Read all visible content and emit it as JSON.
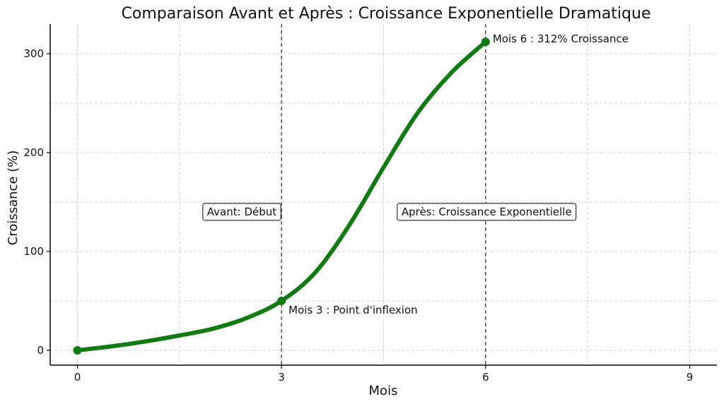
{
  "chart_data": {
    "type": "line",
    "title": "Comparaison Avant et Après : Croissance Exponentielle Dramatique",
    "xlabel": "Mois",
    "ylabel": "Croissance (%)",
    "xlim": [
      -0.4,
      9.4
    ],
    "ylim": [
      -15,
      330
    ],
    "x_ticks": [
      0,
      3,
      6,
      9
    ],
    "y_ticks": [
      0,
      100,
      200,
      300
    ],
    "x_minor_grid": [
      1.5,
      4.5,
      7.5
    ],
    "y_minor_grid": [
      50,
      150,
      250
    ],
    "grid": true,
    "line_color": "#137a13",
    "series": [
      {
        "x": [
          0,
          0.5,
          1,
          1.5,
          2,
          2.5,
          3,
          3.5,
          4,
          4.5,
          5,
          5.5,
          6
        ],
        "values": [
          0,
          4,
          9,
          15,
          22,
          33,
          50,
          79,
          127,
          185,
          240,
          281,
          312
        ]
      }
    ],
    "markers": [
      {
        "x": 0,
        "y": 0
      },
      {
        "x": 3,
        "y": 50
      },
      {
        "x": 6,
        "y": 312
      }
    ],
    "vertical_lines": [
      3,
      6
    ],
    "annotations": [
      {
        "text": "Mois 3 : Point d'inflexion",
        "x": 3,
        "y": 50
      },
      {
        "text": "Mois 6 : 312% Croissance",
        "x": 6,
        "y": 312
      }
    ],
    "boxes": [
      {
        "text": "Avant: Début",
        "x": 3,
        "y": 140,
        "align": "left"
      },
      {
        "text": "Après: Croissance Exponentielle",
        "x": 6,
        "y": 140,
        "align": "right"
      }
    ]
  }
}
